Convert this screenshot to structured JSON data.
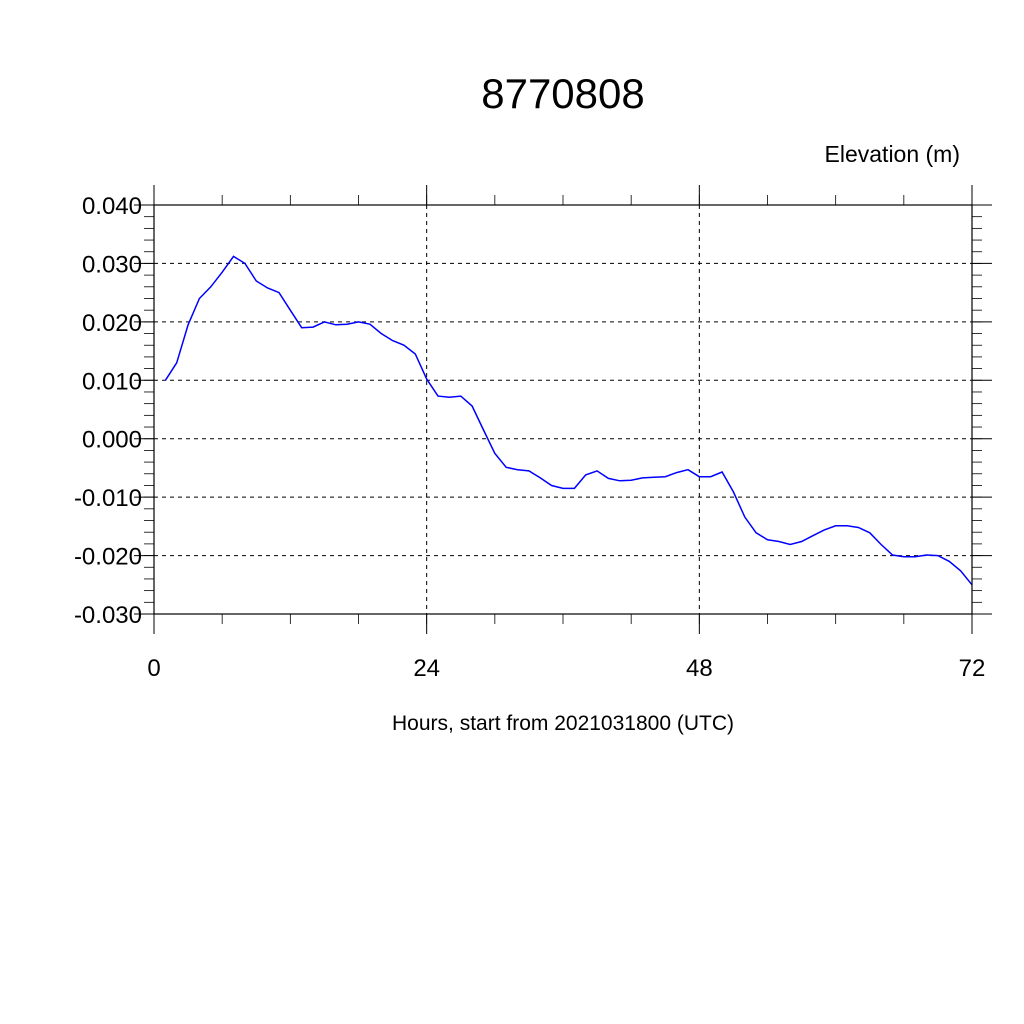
{
  "chart_data": {
    "type": "line",
    "title": "8770808",
    "ylabel": "Elevation (m)",
    "xlabel": "Hours, start from 2021031800 (UTC)",
    "xlim": [
      0,
      72
    ],
    "ylim": [
      -0.03,
      0.04
    ],
    "xticks": [
      0,
      24,
      48,
      72
    ],
    "xtick_labels": [
      "0",
      "24",
      "48",
      "72"
    ],
    "yticks": [
      0.04,
      0.03,
      0.02,
      0.01,
      0.0,
      -0.01,
      -0.02,
      -0.03
    ],
    "ytick_labels": [
      "0.040",
      "0.030",
      "0.020",
      "0.010",
      "0.000",
      "-0.010",
      "-0.020",
      "-0.030"
    ],
    "grid": true,
    "line_color": "#0000ff",
    "series": [
      {
        "name": "Elevation",
        "x": [
          1,
          2,
          3,
          4,
          5,
          6,
          7,
          8,
          9,
          10,
          11,
          12,
          13,
          14,
          15,
          16,
          17,
          18,
          19,
          20,
          21,
          22,
          23,
          24,
          25,
          26,
          27,
          28,
          29,
          30,
          31,
          32,
          33,
          34,
          35,
          36,
          37,
          38,
          39,
          40,
          41,
          42,
          43,
          44,
          45,
          46,
          47,
          48,
          49,
          50,
          51,
          52,
          53,
          54,
          55,
          56,
          57,
          58,
          59,
          60,
          61,
          62,
          63,
          64,
          65,
          66,
          67,
          68,
          69,
          70,
          71,
          72
        ],
        "values": [
          0.01,
          0.013,
          0.0195,
          0.024,
          0.026,
          0.0285,
          0.0312,
          0.03,
          0.027,
          0.0258,
          0.025,
          0.022,
          0.019,
          0.0191,
          0.02,
          0.0195,
          0.0196,
          0.02,
          0.0196,
          0.018,
          0.0168,
          0.016,
          0.0145,
          0.0102,
          0.0073,
          0.0071,
          0.0073,
          0.0056,
          0.0015,
          -0.0025,
          -0.0049,
          -0.0053,
          -0.0055,
          -0.0067,
          -0.008,
          -0.0085,
          -0.0085,
          -0.0062,
          -0.0055,
          -0.0068,
          -0.0072,
          -0.0071,
          -0.0067,
          -0.0066,
          -0.0065,
          -0.0058,
          -0.0053,
          -0.0065,
          -0.0065,
          -0.0057,
          -0.0091,
          -0.0134,
          -0.0161,
          -0.0173,
          -0.0176,
          -0.0181,
          -0.0176,
          -0.0166,
          -0.0156,
          -0.0149,
          -0.0149,
          -0.0152,
          -0.0161,
          -0.0181,
          -0.0199,
          -0.0202,
          -0.0202,
          -0.0199,
          -0.02,
          -0.021,
          -0.0226,
          -0.025
        ]
      }
    ]
  }
}
